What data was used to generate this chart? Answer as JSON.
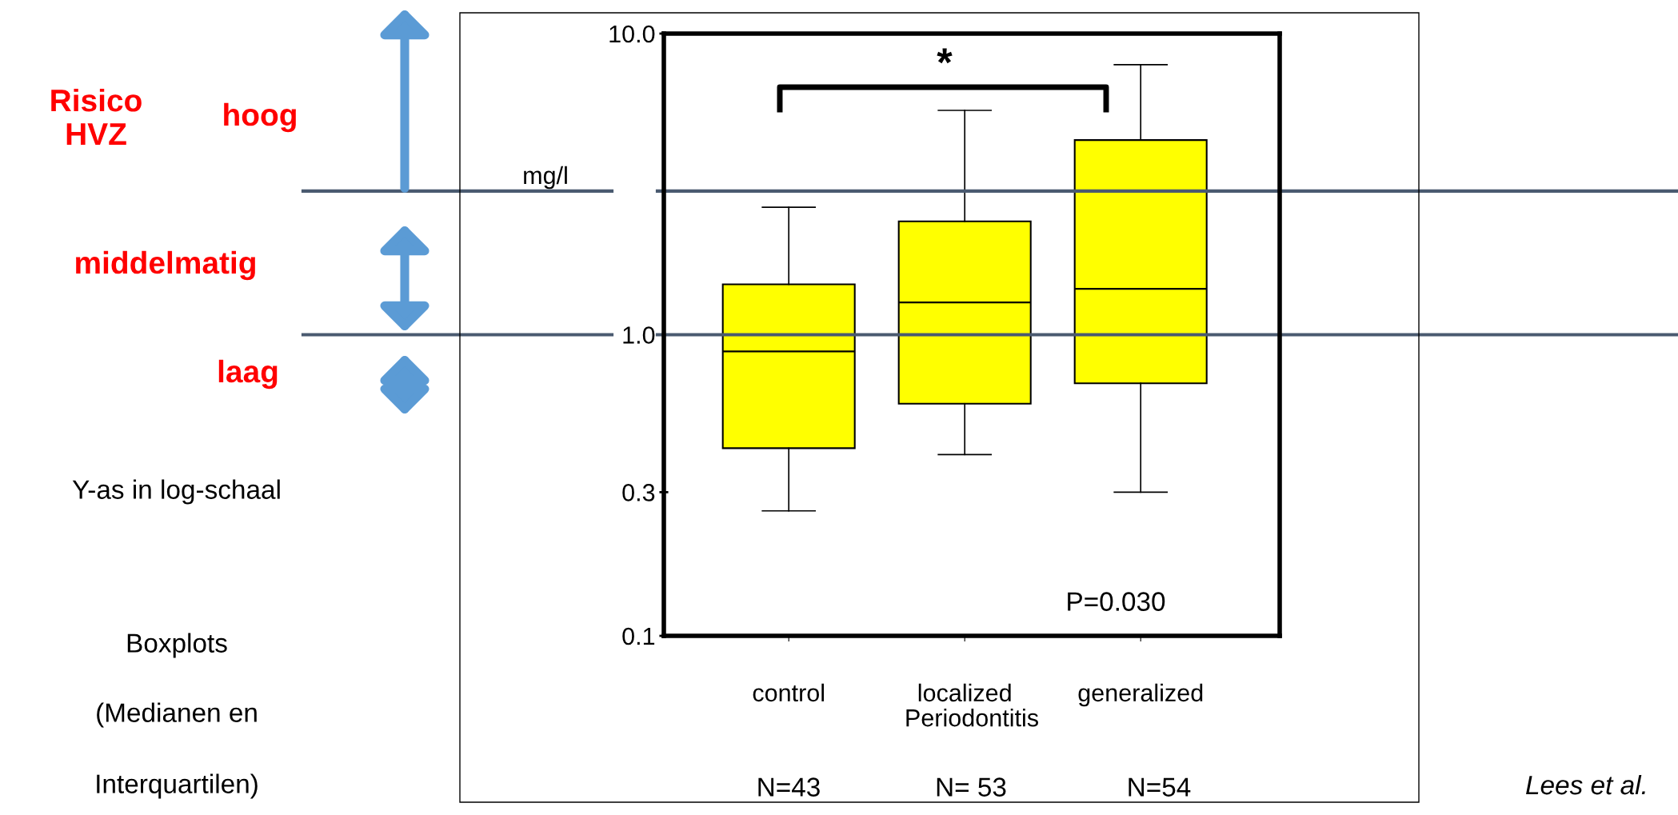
{
  "chart_data": {
    "type": "box",
    "categories": [
      "control",
      "localized",
      "generalized"
    ],
    "color": "#ffff00",
    "boxes": [
      {
        "low": 0.26,
        "q1": 0.42,
        "median": 0.88,
        "q3": 1.47,
        "high": 2.65
      },
      {
        "low": 0.4,
        "q1": 0.59,
        "median": 1.28,
        "q3": 2.38,
        "high": 5.56
      },
      {
        "low": 0.3,
        "q1": 0.69,
        "median": 1.42,
        "q3": 4.43,
        "high": 7.88
      }
    ],
    "log": "y",
    "ylim": [
      0.1,
      10
    ],
    "yticks": [
      0.1,
      0.3,
      {
        "value": 1,
        "label": "1.0"
      },
      {
        "value": 10,
        "label": "10.0"
      }
    ],
    "ylabel": "mg/l",
    "xlabel": "Periodontitis",
    "grid": false,
    "ref_lines": [
      {
        "axis": "y",
        "value": 3,
        "color": "#4a5a70"
      },
      {
        "axis": "y",
        "value": 1,
        "color": "#4a5a70"
      }
    ],
    "annotations": [
      "Risico\nHVZ",
      "hoog",
      "middelmatig",
      "laag",
      "Y-as in log-schaal",
      "Boxplots",
      "(Medianen en",
      "Interquartilen)",
      "*",
      "P=0.030",
      "N=43",
      "N= 53",
      "N=54",
      "Lees et al."
    ]
  }
}
